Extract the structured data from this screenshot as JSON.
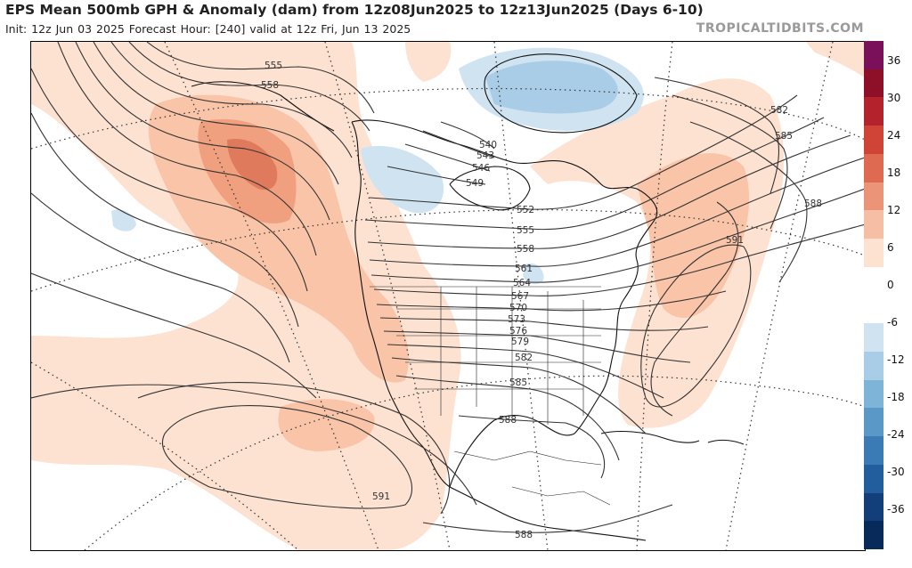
{
  "header": {
    "title": "EPS Mean 500mb GPH & Anomaly (dam) from 12z08Jun2025 to 12z13Jun2025 (Days 6-10)",
    "subtitle": "Init: 12z Jun 03 2025   Forecast Hour: [240]   valid at 12z Fri, Jun 13 2025",
    "brand": "TROPICALTIDBITS.COM"
  },
  "colors": {
    "pos_1": "#fde2d2",
    "pos_2": "#f9c4a8",
    "pos_3": "#f0a07e",
    "pos_4": "#e07a5c",
    "neg_1": "#cfe3f1",
    "neg_2": "#a9cde6",
    "contour": "#333333"
  },
  "colorbar": {
    "labels": [
      "36",
      "30",
      "24",
      "18",
      "12",
      "6",
      "0",
      "-6",
      "-12",
      "-18",
      "-24",
      "-30",
      "-36"
    ],
    "colors": [
      "#7a0f5a",
      "#8e0f28",
      "#b4232c",
      "#cf4437",
      "#de6a52",
      "#eb9478",
      "#f6bea5",
      "#fde2d2",
      "#ffffff",
      "#ffffff",
      "#cfe3f1",
      "#a9cde6",
      "#7fb4d9",
      "#5a98c8",
      "#3a7ab5",
      "#225d9d",
      "#123f7a",
      "#082a5a"
    ]
  },
  "contour_labels": [
    {
      "id": "lbl-555-w",
      "text": "555"
    },
    {
      "id": "lbl-558-w",
      "text": "558"
    },
    {
      "id": "lbl-540",
      "text": "540"
    },
    {
      "id": "lbl-543",
      "text": "543"
    },
    {
      "id": "lbl-546",
      "text": "546"
    },
    {
      "id": "lbl-549",
      "text": "549"
    },
    {
      "id": "lbl-552",
      "text": "552"
    },
    {
      "id": "lbl-555-c",
      "text": "555"
    },
    {
      "id": "lbl-558-c",
      "text": "558"
    },
    {
      "id": "lbl-561",
      "text": "561"
    },
    {
      "id": "lbl-564",
      "text": "564"
    },
    {
      "id": "lbl-567",
      "text": "567"
    },
    {
      "id": "lbl-570",
      "text": "570"
    },
    {
      "id": "lbl-573",
      "text": "573"
    },
    {
      "id": "lbl-576",
      "text": "576"
    },
    {
      "id": "lbl-579",
      "text": "579"
    },
    {
      "id": "lbl-582-c",
      "text": "582"
    },
    {
      "id": "lbl-585-c",
      "text": "585"
    },
    {
      "id": "lbl-588-c",
      "text": "588"
    },
    {
      "id": "lbl-591-s",
      "text": "591"
    },
    {
      "id": "lbl-588-s",
      "text": "588"
    },
    {
      "id": "lbl-582-e",
      "text": "582"
    },
    {
      "id": "lbl-585-e",
      "text": "585"
    },
    {
      "id": "lbl-588-e",
      "text": "588"
    },
    {
      "id": "lbl-591-e",
      "text": "591"
    }
  ]
}
